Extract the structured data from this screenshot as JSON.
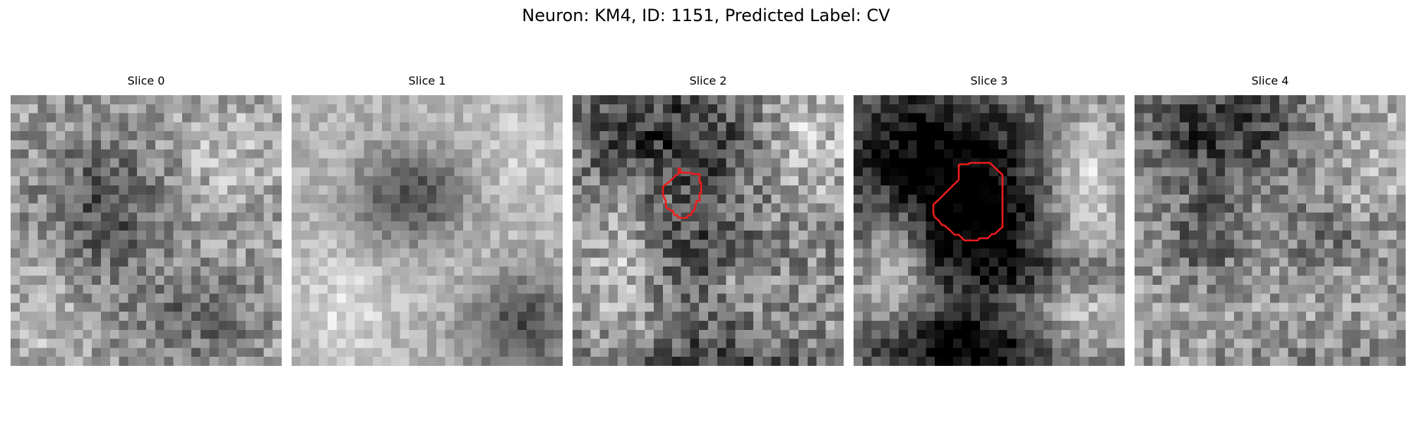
{
  "figure": {
    "title": "Neuron: KM4, ID: 1151, Predicted Label: CV"
  },
  "colors": {
    "background": "#ffffff",
    "contour": "#ee1c1c"
  },
  "colormap": "gray",
  "panels": [
    {
      "title": "Slice 0",
      "description": "grayscale micrograph: dark roughly circular blob upper-left, lighter surroundings, darker region lower-right",
      "contour": null
    },
    {
      "title": "Slice 1",
      "description": "grayscale micrograph: dark oval cell body centered-left with a bright rim, dark region lower-right",
      "contour": null
    },
    {
      "title": "Slice 2",
      "description": "grayscale micrograph with a red segmentation contour around the central dark cell",
      "contour": "red outline"
    },
    {
      "title": "Slice 3",
      "description": "grayscale micrograph: very dark upper-left area, dark cell outlined in red at center",
      "contour": "red outline"
    },
    {
      "title": "Slice 4",
      "description": "grayscale micrograph: dark region at top, textured mid-gray field",
      "contour": null
    }
  ]
}
